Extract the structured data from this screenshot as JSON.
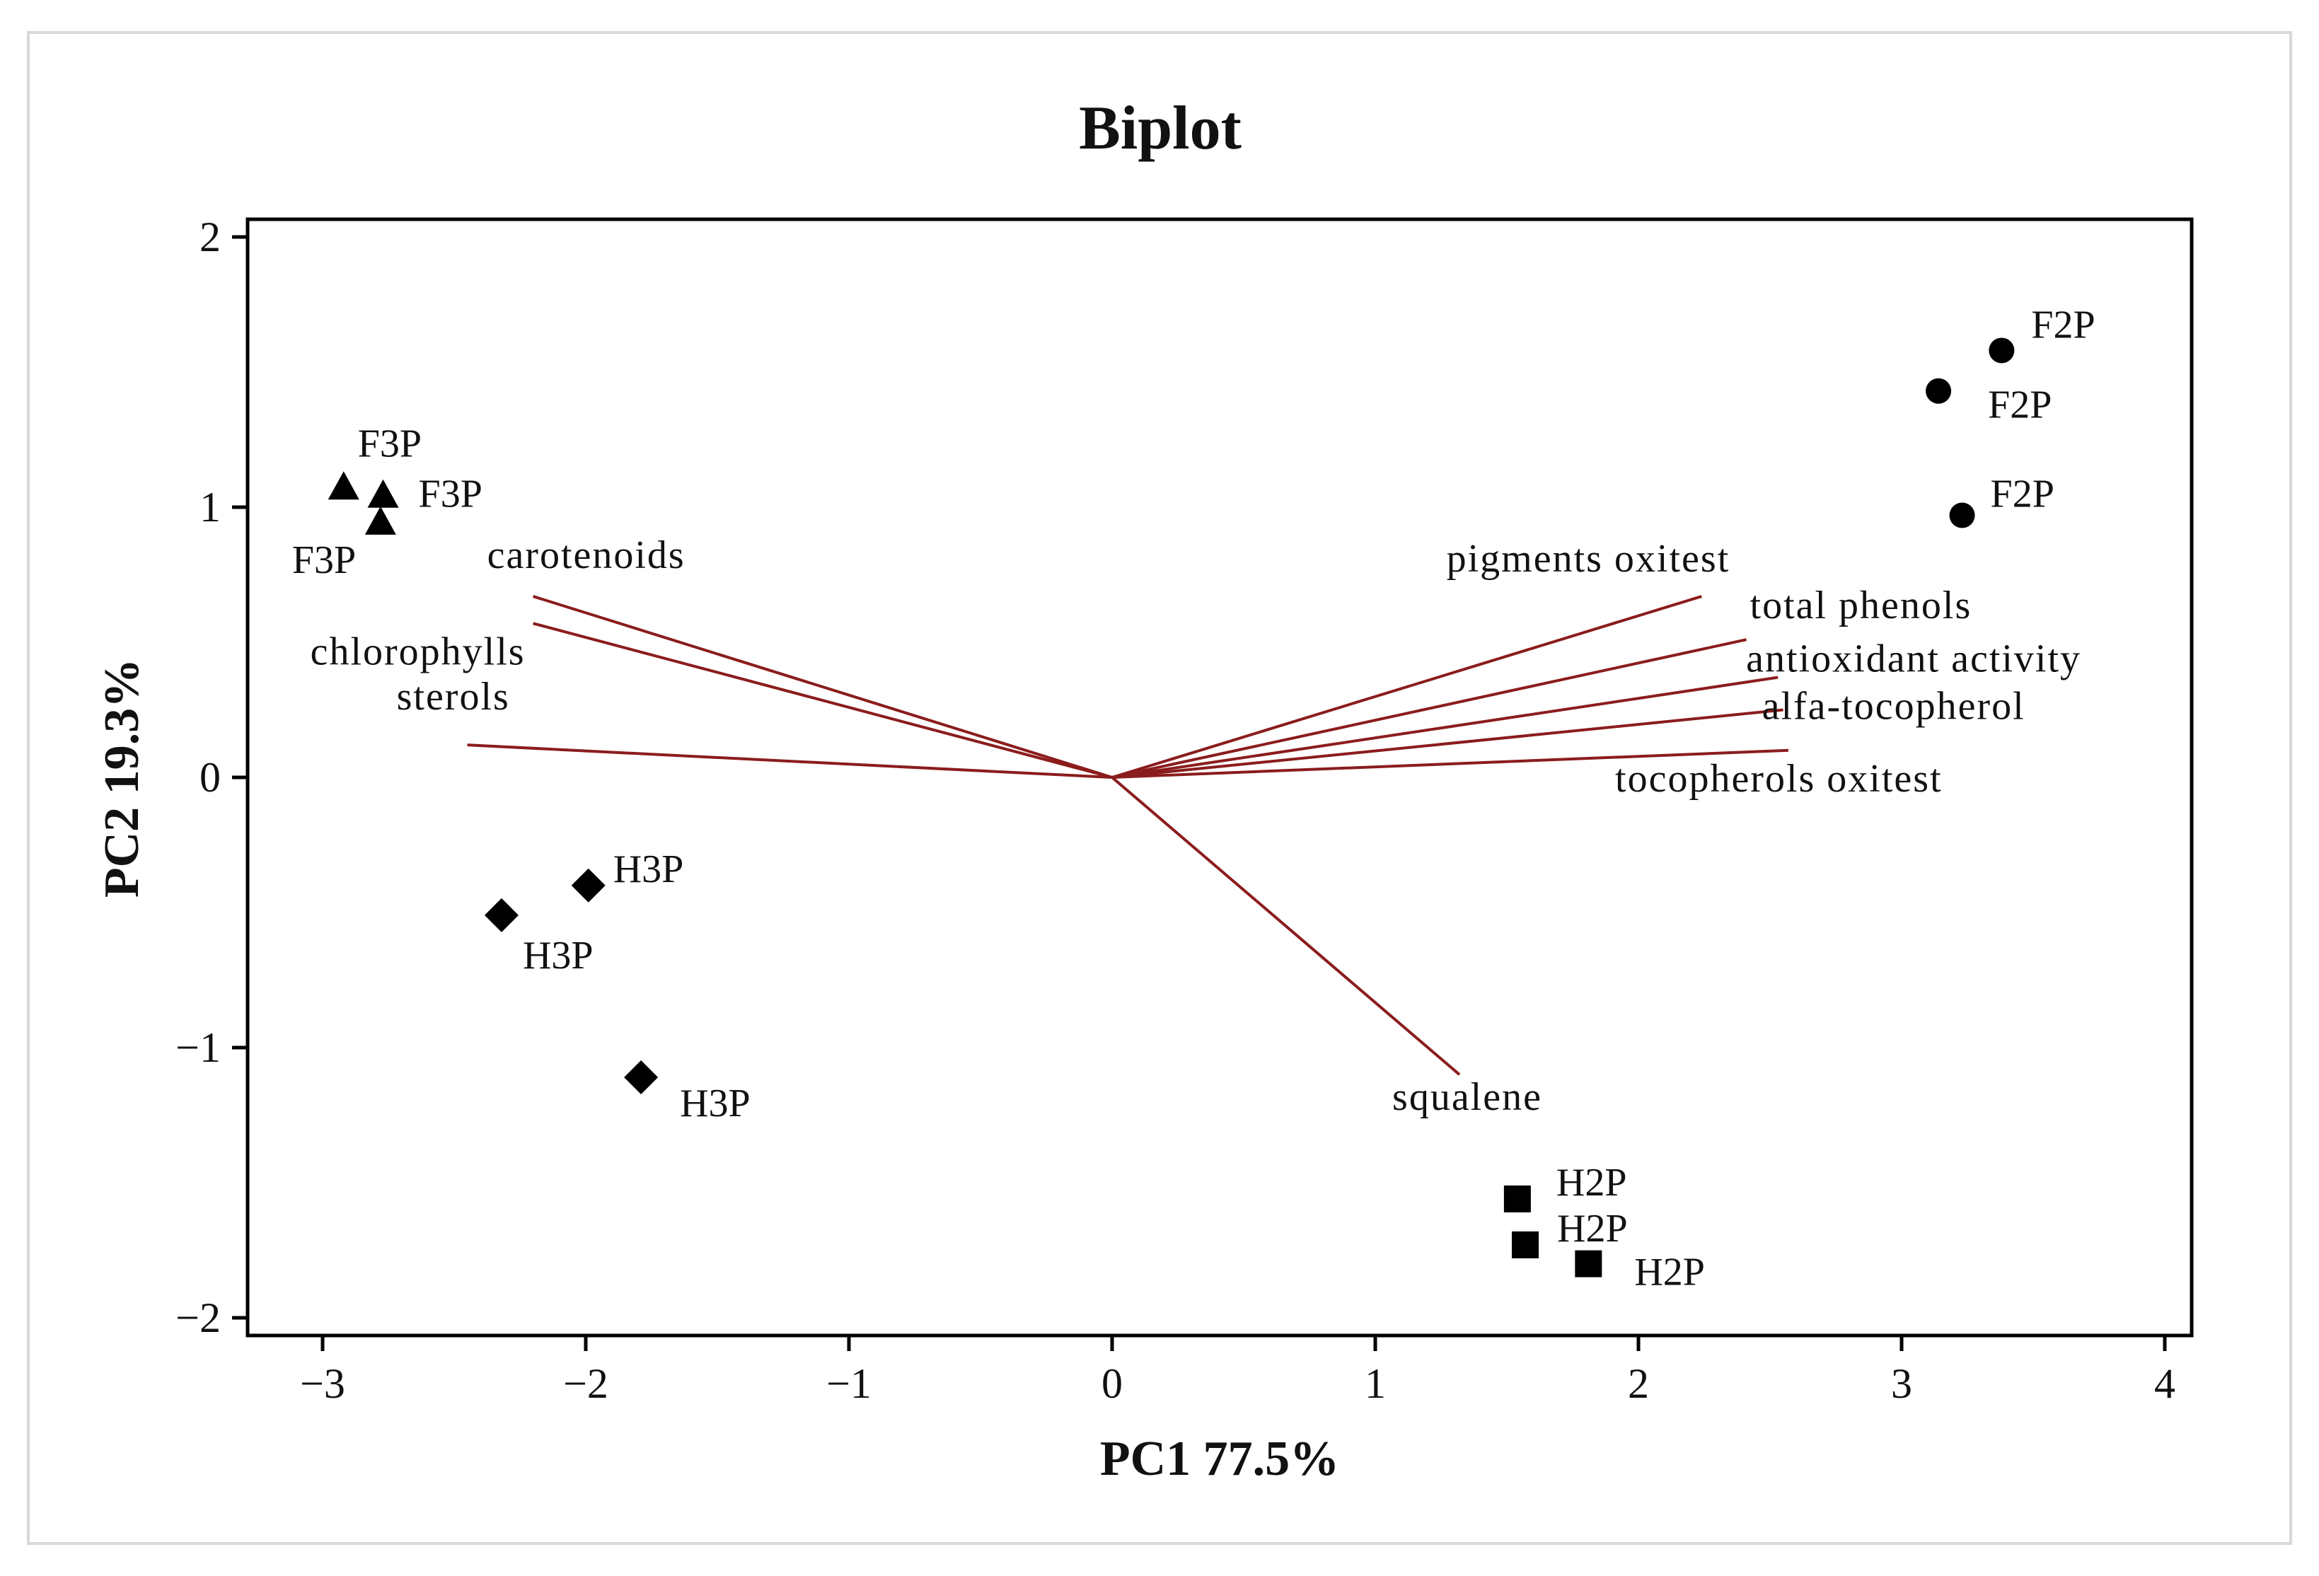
{
  "chart_data": {
    "type": "scatter",
    "subtype": "biplot",
    "title": "Biplot",
    "xlabel": "PC1 77.5%",
    "ylabel": "PC2 19.3%",
    "xlim": [
      -3.35,
      4.05
    ],
    "ylim": [
      -2.05,
      2.05
    ],
    "xticks": [
      -3,
      -2,
      -1,
      0,
      1,
      2,
      3,
      4
    ],
    "xtick_labels": [
      "−3",
      "−2",
      "−1",
      "0",
      "1",
      "2",
      "3",
      "4"
    ],
    "yticks": [
      2,
      1,
      0,
      -1,
      -2
    ],
    "ytick_labels": [
      "2",
      "1",
      "0",
      "−1",
      "−2"
    ],
    "grid": false,
    "colors": {
      "vector": "#8b1c1c",
      "marker": "#000000",
      "axis": "#000000"
    },
    "series": [
      {
        "name": "F2P",
        "marker": "circle",
        "points": [
          {
            "x": 3.38,
            "y": 1.58,
            "label": "F2P"
          },
          {
            "x": 3.14,
            "y": 1.43,
            "label": "F2P"
          },
          {
            "x": 3.23,
            "y": 0.97,
            "label": "F2P"
          }
        ]
      },
      {
        "name": "F3P",
        "marker": "triangle",
        "points": [
          {
            "x": -2.92,
            "y": 1.07,
            "label": "F3P"
          },
          {
            "x": -2.77,
            "y": 1.04,
            "label": "F3P"
          },
          {
            "x": -2.78,
            "y": 0.94,
            "label": "F3P"
          }
        ]
      },
      {
        "name": "H3P",
        "marker": "diamond",
        "points": [
          {
            "x": -1.99,
            "y": -0.4,
            "label": "H3P"
          },
          {
            "x": -2.32,
            "y": -0.51,
            "label": "H3P"
          },
          {
            "x": -1.79,
            "y": -1.11,
            "label": "H3P"
          }
        ]
      },
      {
        "name": "H2P",
        "marker": "square",
        "points": [
          {
            "x": 1.54,
            "y": -1.56,
            "label": "H2P"
          },
          {
            "x": 1.57,
            "y": -1.73,
            "label": "H2P"
          },
          {
            "x": 1.81,
            "y": -1.8,
            "label": "H2P"
          }
        ]
      }
    ],
    "loadings": [
      {
        "name": "carotenoids",
        "x": -2.2,
        "y": 0.67
      },
      {
        "name": "chlorophylls",
        "x": -2.2,
        "y": 0.57
      },
      {
        "name": "sterols",
        "x": -2.45,
        "y": 0.12
      },
      {
        "name": "pigments oxitest",
        "x": 2.24,
        "y": 0.67
      },
      {
        "name": "total phenols",
        "x": 2.41,
        "y": 0.51
      },
      {
        "name": "antioxidant activity",
        "x": 2.53,
        "y": 0.37
      },
      {
        "name": "alfa-tocopherol",
        "x": 2.55,
        "y": 0.25
      },
      {
        "name": "tocopherols oxitest",
        "x": 2.57,
        "y": 0.1
      },
      {
        "name": "squalene",
        "x": 1.32,
        "y": -1.1
      }
    ]
  }
}
